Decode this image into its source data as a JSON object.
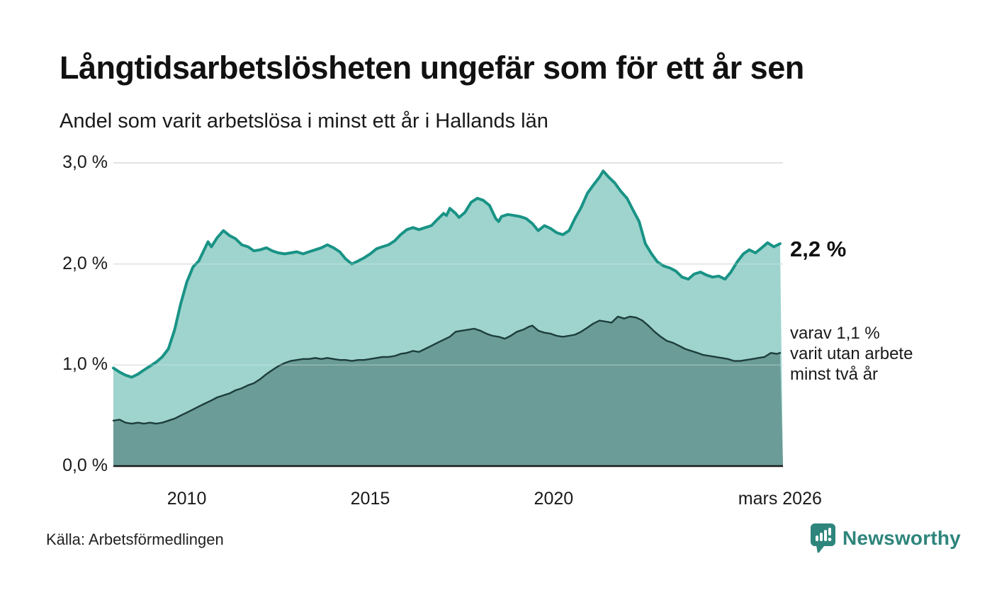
{
  "header": {
    "title": "Långtidsarbetslösheten ungefär som för ett år sen",
    "subtitle": "Andel som varit arbetslösa i minst ett år i Hallands län"
  },
  "annotations": {
    "end_value_total": "2,2 %",
    "end_note_line1": "varav 1,1 %",
    "end_note_line2": "varit utan arbete",
    "end_note_line3": "minst två år"
  },
  "footer": {
    "source": "Källa: Arbetsförmedlingen",
    "brand": "Newsworthy"
  },
  "colors": {
    "teal_line": "#199386",
    "teal_fill": "rgba(134,201,193,0.8)",
    "dark_line": "#1d3d3b",
    "dark_fill": "rgba(98,146,141,0.85)",
    "gridline": "#d9d9d9",
    "axis": "#1a1a1a",
    "brand_teal": "#2e857c"
  },
  "chart_data": {
    "type": "area",
    "title": "Långtidsarbetslösheten ungefär som för ett år sen",
    "subtitle": "Andel som varit arbetslösa i minst ett år i Hallands län",
    "x_range": [
      2008.0,
      2026.25
    ],
    "y_range": [
      0,
      3
    ],
    "grid": "horizontal",
    "legend_position": "right-annotations",
    "y_ticks": [
      {
        "value": 3,
        "label": "3,0 %"
      },
      {
        "value": 2,
        "label": "2,0 %"
      },
      {
        "value": 1,
        "label": "1,0 %"
      },
      {
        "value": 0,
        "label": "0,0 %"
      }
    ],
    "x_ticks": [
      {
        "value": 2010,
        "label": "2010"
      },
      {
        "value": 2015,
        "label": "2015"
      },
      {
        "value": 2020,
        "label": "2020"
      },
      {
        "value": 2026.17,
        "label": "mars 2026"
      }
    ],
    "series": [
      {
        "name": "Arbetslösa minst ett år",
        "end_label": "2,2 %",
        "end_value": 2.2,
        "points": [
          [
            2008.0,
            0.97
          ],
          [
            2008.17,
            0.93
          ],
          [
            2008.33,
            0.9
          ],
          [
            2008.5,
            0.88
          ],
          [
            2008.67,
            0.91
          ],
          [
            2008.83,
            0.95
          ],
          [
            2009.0,
            0.99
          ],
          [
            2009.17,
            1.03
          ],
          [
            2009.33,
            1.08
          ],
          [
            2009.5,
            1.16
          ],
          [
            2009.67,
            1.35
          ],
          [
            2009.83,
            1.6
          ],
          [
            2010.0,
            1.82
          ],
          [
            2010.17,
            1.97
          ],
          [
            2010.33,
            2.03
          ],
          [
            2010.5,
            2.16
          ],
          [
            2010.58,
            2.22
          ],
          [
            2010.67,
            2.17
          ],
          [
            2010.83,
            2.26
          ],
          [
            2011.0,
            2.33
          ],
          [
            2011.17,
            2.28
          ],
          [
            2011.33,
            2.25
          ],
          [
            2011.5,
            2.19
          ],
          [
            2011.67,
            2.17
          ],
          [
            2011.83,
            2.13
          ],
          [
            2012.0,
            2.14
          ],
          [
            2012.17,
            2.16
          ],
          [
            2012.33,
            2.13
          ],
          [
            2012.5,
            2.11
          ],
          [
            2012.67,
            2.1
          ],
          [
            2012.83,
            2.11
          ],
          [
            2013.0,
            2.12
          ],
          [
            2013.17,
            2.1
          ],
          [
            2013.33,
            2.12
          ],
          [
            2013.5,
            2.14
          ],
          [
            2013.67,
            2.16
          ],
          [
            2013.83,
            2.19
          ],
          [
            2014.0,
            2.16
          ],
          [
            2014.17,
            2.12
          ],
          [
            2014.33,
            2.05
          ],
          [
            2014.5,
            2.0
          ],
          [
            2014.67,
            2.03
          ],
          [
            2014.83,
            2.06
          ],
          [
            2015.0,
            2.1
          ],
          [
            2015.17,
            2.15
          ],
          [
            2015.33,
            2.17
          ],
          [
            2015.5,
            2.19
          ],
          [
            2015.67,
            2.23
          ],
          [
            2015.83,
            2.29
          ],
          [
            2016.0,
            2.34
          ],
          [
            2016.17,
            2.36
          ],
          [
            2016.33,
            2.34
          ],
          [
            2016.5,
            2.36
          ],
          [
            2016.67,
            2.38
          ],
          [
            2016.83,
            2.44
          ],
          [
            2017.0,
            2.5
          ],
          [
            2017.08,
            2.48
          ],
          [
            2017.17,
            2.55
          ],
          [
            2017.33,
            2.5
          ],
          [
            2017.42,
            2.46
          ],
          [
            2017.58,
            2.51
          ],
          [
            2017.75,
            2.61
          ],
          [
            2017.92,
            2.65
          ],
          [
            2018.08,
            2.63
          ],
          [
            2018.25,
            2.58
          ],
          [
            2018.42,
            2.45
          ],
          [
            2018.5,
            2.42
          ],
          [
            2018.58,
            2.47
          ],
          [
            2018.75,
            2.49
          ],
          [
            2018.92,
            2.48
          ],
          [
            2019.08,
            2.47
          ],
          [
            2019.25,
            2.45
          ],
          [
            2019.42,
            2.4
          ],
          [
            2019.58,
            2.33
          ],
          [
            2019.75,
            2.38
          ],
          [
            2019.92,
            2.35
          ],
          [
            2020.08,
            2.31
          ],
          [
            2020.25,
            2.29
          ],
          [
            2020.42,
            2.33
          ],
          [
            2020.58,
            2.45
          ],
          [
            2020.75,
            2.56
          ],
          [
            2020.92,
            2.7
          ],
          [
            2021.08,
            2.78
          ],
          [
            2021.25,
            2.86
          ],
          [
            2021.35,
            2.92
          ],
          [
            2021.5,
            2.86
          ],
          [
            2021.67,
            2.8
          ],
          [
            2021.83,
            2.72
          ],
          [
            2022.0,
            2.65
          ],
          [
            2022.17,
            2.53
          ],
          [
            2022.33,
            2.42
          ],
          [
            2022.5,
            2.2
          ],
          [
            2022.67,
            2.1
          ],
          [
            2022.83,
            2.02
          ],
          [
            2023.0,
            1.98
          ],
          [
            2023.17,
            1.96
          ],
          [
            2023.33,
            1.93
          ],
          [
            2023.5,
            1.87
          ],
          [
            2023.67,
            1.85
          ],
          [
            2023.83,
            1.9
          ],
          [
            2024.0,
            1.92
          ],
          [
            2024.17,
            1.89
          ],
          [
            2024.33,
            1.87
          ],
          [
            2024.5,
            1.88
          ],
          [
            2024.67,
            1.85
          ],
          [
            2024.83,
            1.92
          ],
          [
            2025.0,
            2.02
          ],
          [
            2025.17,
            2.1
          ],
          [
            2025.33,
            2.14
          ],
          [
            2025.5,
            2.11
          ],
          [
            2025.67,
            2.16
          ],
          [
            2025.83,
            2.21
          ],
          [
            2026.0,
            2.17
          ],
          [
            2026.17,
            2.2
          ]
        ]
      },
      {
        "name": "varav utan arbete minst två år",
        "end_label": "varav 1,1 % varit utan arbete minst två år",
        "end_value": 1.1,
        "points": [
          [
            2008.0,
            0.45
          ],
          [
            2008.17,
            0.46
          ],
          [
            2008.33,
            0.43
          ],
          [
            2008.5,
            0.42
          ],
          [
            2008.67,
            0.43
          ],
          [
            2008.83,
            0.42
          ],
          [
            2009.0,
            0.43
          ],
          [
            2009.17,
            0.42
          ],
          [
            2009.33,
            0.43
          ],
          [
            2009.5,
            0.45
          ],
          [
            2009.67,
            0.47
          ],
          [
            2009.83,
            0.5
          ],
          [
            2010.0,
            0.53
          ],
          [
            2010.17,
            0.56
          ],
          [
            2010.33,
            0.59
          ],
          [
            2010.5,
            0.62
          ],
          [
            2010.67,
            0.65
          ],
          [
            2010.83,
            0.68
          ],
          [
            2011.0,
            0.7
          ],
          [
            2011.17,
            0.72
          ],
          [
            2011.33,
            0.75
          ],
          [
            2011.5,
            0.77
          ],
          [
            2011.67,
            0.8
          ],
          [
            2011.83,
            0.82
          ],
          [
            2012.0,
            0.86
          ],
          [
            2012.17,
            0.91
          ],
          [
            2012.33,
            0.95
          ],
          [
            2012.5,
            0.99
          ],
          [
            2012.67,
            1.02
          ],
          [
            2012.83,
            1.04
          ],
          [
            2013.0,
            1.05
          ],
          [
            2013.17,
            1.06
          ],
          [
            2013.33,
            1.06
          ],
          [
            2013.5,
            1.07
          ],
          [
            2013.67,
            1.06
          ],
          [
            2013.83,
            1.07
          ],
          [
            2014.0,
            1.06
          ],
          [
            2014.17,
            1.05
          ],
          [
            2014.33,
            1.05
          ],
          [
            2014.5,
            1.04
          ],
          [
            2014.67,
            1.05
          ],
          [
            2014.83,
            1.05
          ],
          [
            2015.0,
            1.06
          ],
          [
            2015.17,
            1.07
          ],
          [
            2015.33,
            1.08
          ],
          [
            2015.5,
            1.08
          ],
          [
            2015.67,
            1.09
          ],
          [
            2015.83,
            1.11
          ],
          [
            2016.0,
            1.12
          ],
          [
            2016.17,
            1.14
          ],
          [
            2016.33,
            1.13
          ],
          [
            2016.5,
            1.16
          ],
          [
            2016.67,
            1.19
          ],
          [
            2016.83,
            1.22
          ],
          [
            2017.0,
            1.25
          ],
          [
            2017.17,
            1.28
          ],
          [
            2017.33,
            1.33
          ],
          [
            2017.5,
            1.34
          ],
          [
            2017.67,
            1.35
          ],
          [
            2017.83,
            1.36
          ],
          [
            2018.0,
            1.34
          ],
          [
            2018.17,
            1.31
          ],
          [
            2018.33,
            1.29
          ],
          [
            2018.5,
            1.28
          ],
          [
            2018.67,
            1.26
          ],
          [
            2018.83,
            1.29
          ],
          [
            2019.0,
            1.33
          ],
          [
            2019.17,
            1.35
          ],
          [
            2019.33,
            1.38
          ],
          [
            2019.42,
            1.39
          ],
          [
            2019.58,
            1.34
          ],
          [
            2019.75,
            1.32
          ],
          [
            2019.92,
            1.31
          ],
          [
            2020.08,
            1.29
          ],
          [
            2020.25,
            1.28
          ],
          [
            2020.42,
            1.29
          ],
          [
            2020.58,
            1.3
          ],
          [
            2020.75,
            1.33
          ],
          [
            2020.92,
            1.37
          ],
          [
            2021.08,
            1.41
          ],
          [
            2021.25,
            1.44
          ],
          [
            2021.42,
            1.43
          ],
          [
            2021.58,
            1.42
          ],
          [
            2021.75,
            1.48
          ],
          [
            2021.92,
            1.46
          ],
          [
            2022.08,
            1.48
          ],
          [
            2022.25,
            1.47
          ],
          [
            2022.42,
            1.44
          ],
          [
            2022.58,
            1.39
          ],
          [
            2022.75,
            1.33
          ],
          [
            2022.92,
            1.28
          ],
          [
            2023.08,
            1.24
          ],
          [
            2023.25,
            1.22
          ],
          [
            2023.42,
            1.19
          ],
          [
            2023.58,
            1.16
          ],
          [
            2023.75,
            1.14
          ],
          [
            2023.92,
            1.12
          ],
          [
            2024.08,
            1.1
          ],
          [
            2024.25,
            1.09
          ],
          [
            2024.42,
            1.08
          ],
          [
            2024.58,
            1.07
          ],
          [
            2024.75,
            1.06
          ],
          [
            2024.92,
            1.04
          ],
          [
            2025.08,
            1.04
          ],
          [
            2025.25,
            1.05
          ],
          [
            2025.42,
            1.06
          ],
          [
            2025.58,
            1.07
          ],
          [
            2025.75,
            1.08
          ],
          [
            2025.92,
            1.12
          ],
          [
            2026.08,
            1.11
          ],
          [
            2026.17,
            1.12
          ]
        ]
      }
    ]
  }
}
